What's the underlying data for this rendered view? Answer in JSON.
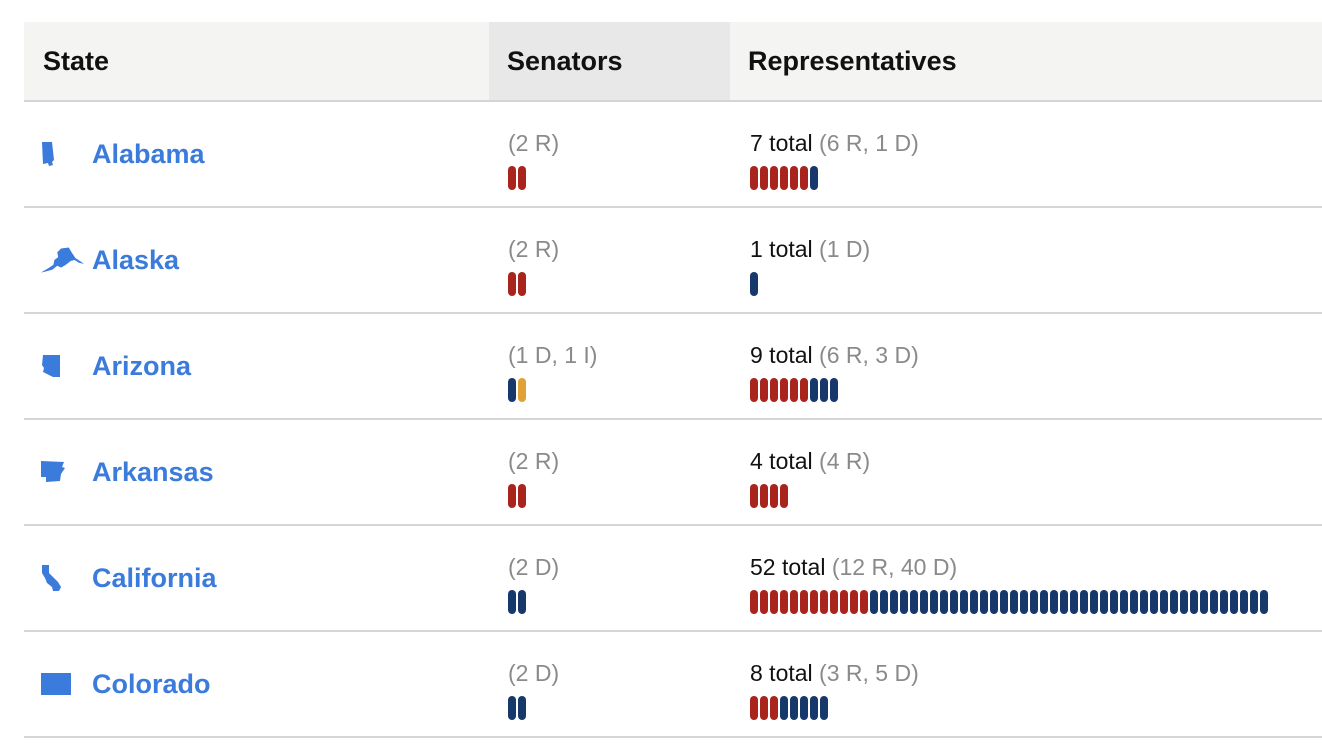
{
  "header": {
    "state": "State",
    "senators": "Senators",
    "representatives": "Representatives"
  },
  "colors": {
    "R": "#a8241c",
    "D": "#17386b",
    "I": "#e0a237",
    "link": "#3a7bdc"
  },
  "rows": [
    {
      "state": "Alabama",
      "icon": "alabama-icon",
      "senators": {
        "text": "(2 R)",
        "seats": [
          "R",
          "R"
        ]
      },
      "reps": {
        "total": "7 total",
        "breakdown": "(6 R, 1 D)",
        "R": 6,
        "D": 1
      }
    },
    {
      "state": "Alaska",
      "icon": "alaska-icon",
      "senators": {
        "text": "(2 R)",
        "seats": [
          "R",
          "R"
        ]
      },
      "reps": {
        "total": "1 total",
        "breakdown": "(1 D)",
        "R": 0,
        "D": 1
      }
    },
    {
      "state": "Arizona",
      "icon": "arizona-icon",
      "senators": {
        "text": "(1 D, 1 I)",
        "seats": [
          "D",
          "I"
        ]
      },
      "reps": {
        "total": "9 total",
        "breakdown": "(6 R, 3 D)",
        "R": 6,
        "D": 3
      }
    },
    {
      "state": "Arkansas",
      "icon": "arkansas-icon",
      "senators": {
        "text": "(2 R)",
        "seats": [
          "R",
          "R"
        ]
      },
      "reps": {
        "total": "4 total",
        "breakdown": "(4 R)",
        "R": 4,
        "D": 0
      }
    },
    {
      "state": "California",
      "icon": "california-icon",
      "senators": {
        "text": "(2 D)",
        "seats": [
          "D",
          "D"
        ]
      },
      "reps": {
        "total": "52 total",
        "breakdown": "(12 R, 40 D)",
        "R": 12,
        "D": 40
      }
    },
    {
      "state": "Colorado",
      "icon": "colorado-icon",
      "senators": {
        "text": "(2 D)",
        "seats": [
          "D",
          "D"
        ]
      },
      "reps": {
        "total": "8 total",
        "breakdown": "(3 R, 5 D)",
        "R": 3,
        "D": 5
      }
    }
  ]
}
